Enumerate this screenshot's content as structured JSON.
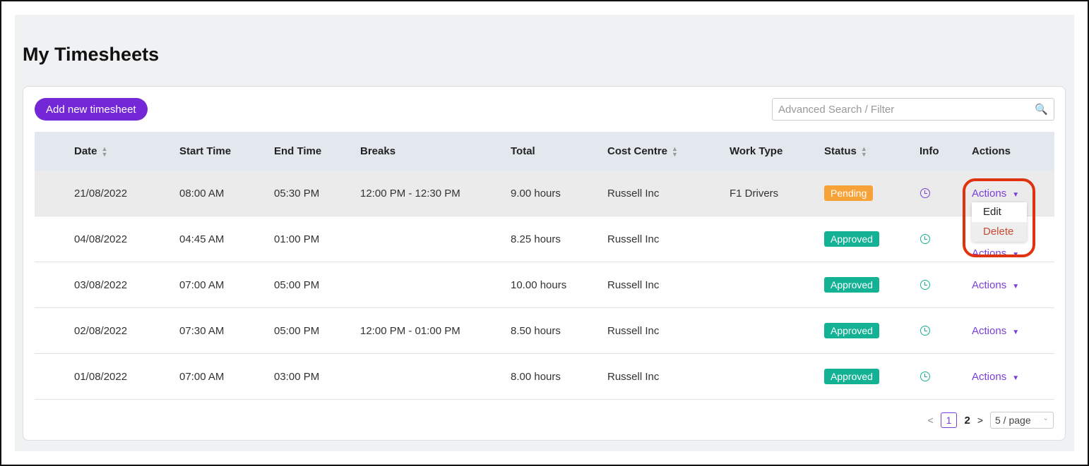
{
  "title": "My Timesheets",
  "add_label": "Add new timesheet",
  "search_placeholder": "Advanced Search / Filter",
  "columns": [
    "Date",
    "Start Time",
    "End Time",
    "Breaks",
    "Total",
    "Cost Centre",
    "Work Type",
    "Status",
    "Info",
    "Actions"
  ],
  "rows": [
    {
      "date": "21/08/2022",
      "start": "08:00 AM",
      "end": "05:30 PM",
      "breaks": "12:00 PM - 12:30 PM",
      "total": "9.00 hours",
      "cost": "Russell Inc",
      "work": "F1 Drivers",
      "status": "Pending",
      "action": "Actions"
    },
    {
      "date": "04/08/2022",
      "start": "04:45 AM",
      "end": "01:00 PM",
      "breaks": "",
      "total": "8.25 hours",
      "cost": "Russell Inc",
      "work": "",
      "status": "Approved",
      "action": "Actions"
    },
    {
      "date": "03/08/2022",
      "start": "07:00 AM",
      "end": "05:00 PM",
      "breaks": "",
      "total": "10.00 hours",
      "cost": "Russell Inc",
      "work": "",
      "status": "Approved",
      "action": "Actions"
    },
    {
      "date": "02/08/2022",
      "start": "07:30 AM",
      "end": "05:00 PM",
      "breaks": "12:00 PM - 01:00 PM",
      "total": "8.50 hours",
      "cost": "Russell Inc",
      "work": "",
      "status": "Approved",
      "action": "Actions"
    },
    {
      "date": "01/08/2022",
      "start": "07:00 AM",
      "end": "03:00 PM",
      "breaks": "",
      "total": "8.00 hours",
      "cost": "Russell Inc",
      "work": "",
      "status": "Approved",
      "action": "Actions"
    }
  ],
  "menu": {
    "edit": "Edit",
    "delete": "Delete"
  },
  "pagination": {
    "prev": "<",
    "pages": [
      "1",
      "2"
    ],
    "next": ">",
    "page_size": "5 / page"
  },
  "colors": {
    "accent": "#7327d6",
    "pending": "#f7a236",
    "approved": "#13b295",
    "highlight": "#e0320e"
  }
}
